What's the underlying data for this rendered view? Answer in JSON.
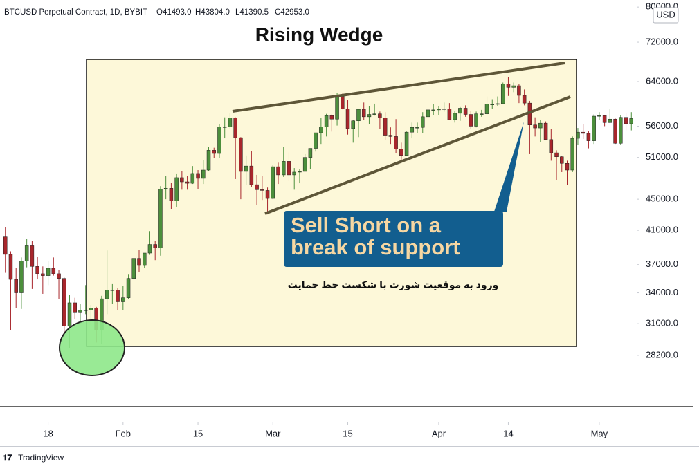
{
  "chart_data": {
    "type": "candlestick",
    "header": [
      "BTCUSD Perpetual Contract, 1D, BYBIT",
      "O41493.0",
      "H43804.0",
      "L41390.5",
      "C42953.0"
    ],
    "title": "Rising Wedge",
    "callout": [
      "Sell Short on a",
      "break of support"
    ],
    "note": "ورود به موقعیت شورت با شکست خط حمایت",
    "currency": "USD",
    "up_color": "#4c8f3c",
    "down_color": "#a8262c",
    "log_scale": true,
    "grid": false,
    "ylim": [
      25900,
      81700
    ],
    "yticks": [
      {
        "value": 80000,
        "label": "80000.0"
      },
      {
        "value": 72000,
        "label": "72000.0"
      },
      {
        "value": 64000,
        "label": "64000.0"
      },
      {
        "value": 56000,
        "label": "56000.0"
      },
      {
        "value": 51000,
        "label": "51000.0"
      },
      {
        "value": 45000,
        "label": "45000.0"
      },
      {
        "value": 41000,
        "label": "41000.0"
      },
      {
        "value": 37000,
        "label": "37000.0"
      },
      {
        "value": 34000,
        "label": "34000.0"
      },
      {
        "value": 31000,
        "label": "31000.0"
      },
      {
        "value": 28200,
        "label": "28200.0"
      }
    ],
    "xlim": [
      -1,
      118
    ],
    "xticks": [
      {
        "value": 8,
        "label": "18"
      },
      {
        "value": 22,
        "label": "Feb"
      },
      {
        "value": 36,
        "label": "15"
      },
      {
        "value": 50,
        "label": "Mar"
      },
      {
        "value": 64,
        "label": "15"
      },
      {
        "value": 81,
        "label": "Apr"
      },
      {
        "value": 94,
        "label": "14"
      },
      {
        "value": 111,
        "label": "May"
      }
    ],
    "candles": [
      [
        40200,
        41400,
        36100,
        38150
      ],
      [
        38150,
        38500,
        30400,
        35400
      ],
      [
        35400,
        36600,
        32500,
        34000
      ],
      [
        34000,
        37800,
        32400,
        37400
      ],
      [
        37400,
        40000,
        36700,
        39150
      ],
      [
        39150,
        39700,
        34400,
        36800
      ],
      [
        36800,
        37900,
        35400,
        36000
      ],
      [
        36000,
        36800,
        33900,
        35800
      ],
      [
        35800,
        37400,
        34800,
        36600
      ],
      [
        36600,
        37800,
        35800,
        36000
      ],
      [
        36000,
        36400,
        33400,
        35500
      ],
      [
        35500,
        35600,
        30100,
        30800
      ],
      [
        30800,
        33800,
        28800,
        33000
      ],
      [
        33000,
        33500,
        31400,
        32100
      ],
      [
        32100,
        32900,
        31000,
        32300
      ],
      [
        32300,
        34800,
        31900,
        32300
      ],
      [
        32300,
        32800,
        30900,
        32500
      ],
      [
        32500,
        32600,
        29300,
        30400
      ],
      [
        30400,
        33700,
        29200,
        33400
      ],
      [
        33400,
        38600,
        31900,
        34300
      ],
      [
        34300,
        34900,
        32900,
        34300
      ],
      [
        34300,
        34500,
        32300,
        33100
      ],
      [
        33100,
        34700,
        32300,
        33500
      ],
      [
        33500,
        35900,
        33400,
        35500
      ],
      [
        35500,
        37700,
        35400,
        37700
      ],
      [
        37700,
        38700,
        36200,
        36900
      ],
      [
        36900,
        38300,
        36600,
        38300
      ],
      [
        38300,
        40900,
        38100,
        39300
      ],
      [
        39300,
        39700,
        37500,
        38900
      ],
      [
        38900,
        46800,
        38000,
        46400
      ],
      [
        46400,
        48200,
        45000,
        46500
      ],
      [
        46500,
        47300,
        43700,
        44800
      ],
      [
        44800,
        48600,
        44000,
        48000
      ],
      [
        48000,
        48900,
        46300,
        47400
      ],
      [
        47400,
        48200,
        46300,
        47200
      ],
      [
        47200,
        49700,
        47100,
        48600
      ],
      [
        48600,
        49100,
        46400,
        47900
      ],
      [
        47900,
        50600,
        47100,
        49100
      ],
      [
        49100,
        52600,
        48900,
        52100
      ],
      [
        52100,
        52500,
        50900,
        51600
      ],
      [
        51600,
        56300,
        50900,
        55900
      ],
      [
        55900,
        57500,
        54000,
        55900
      ],
      [
        55900,
        58300,
        55500,
        57400
      ],
      [
        57400,
        57500,
        47800,
        54100
      ],
      [
        54100,
        54200,
        45000,
        48900
      ],
      [
        48900,
        51300,
        47000,
        49700
      ],
      [
        49700,
        52000,
        46700,
        47000
      ],
      [
        47000,
        48400,
        44200,
        46300
      ],
      [
        46300,
        48200,
        44900,
        46200
      ],
      [
        46200,
        46600,
        43000,
        45100
      ],
      [
        45100,
        49800,
        45000,
        49600
      ],
      [
        49600,
        50200,
        47100,
        48400
      ],
      [
        48400,
        52600,
        48100,
        50400
      ],
      [
        50400,
        51800,
        47500,
        48400
      ],
      [
        48400,
        49400,
        46300,
        48800
      ],
      [
        48800,
        49200,
        47200,
        48900
      ],
      [
        48900,
        51500,
        48900,
        51000
      ],
      [
        51000,
        52400,
        49300,
        52400
      ],
      [
        52400,
        54900,
        51900,
        54900
      ],
      [
        54900,
        57400,
        53100,
        55900
      ],
      [
        55900,
        58100,
        54300,
        57800
      ],
      [
        57800,
        58000,
        55100,
        57200
      ],
      [
        57200,
        61800,
        56100,
        61200
      ],
      [
        61200,
        61700,
        58900,
        59000
      ],
      [
        59000,
        60600,
        54600,
        55600
      ],
      [
        55600,
        57000,
        53300,
        56900
      ],
      [
        56900,
        59000,
        54200,
        58900
      ],
      [
        58900,
        60100,
        57100,
        57600
      ],
      [
        57600,
        59500,
        56300,
        58000
      ],
      [
        58000,
        59900,
        57800,
        58100
      ],
      [
        58100,
        58500,
        55500,
        57400
      ],
      [
        57400,
        58400,
        53700,
        54500
      ],
      [
        54500,
        55800,
        53100,
        54300
      ],
      [
        54300,
        57200,
        51700,
        52300
      ],
      [
        52300,
        53300,
        50400,
        51300
      ],
      [
        51300,
        55100,
        51300,
        55000
      ],
      [
        55000,
        56600,
        54000,
        55800
      ],
      [
        55800,
        56600,
        54900,
        55800
      ],
      [
        55800,
        58400,
        54900,
        57600
      ],
      [
        57600,
        59300,
        57000,
        58800
      ],
      [
        58800,
        59800,
        57900,
        58800
      ],
      [
        58800,
        59500,
        57900,
        59000
      ],
      [
        59000,
        60100,
        58500,
        59000
      ],
      [
        59000,
        60000,
        57000,
        57100
      ],
      [
        57100,
        58600,
        56600,
        58200
      ],
      [
        58200,
        59300,
        56900,
        59100
      ],
      [
        59100,
        59600,
        57600,
        58000
      ],
      [
        58000,
        58600,
        55600,
        56000
      ],
      [
        56000,
        58500,
        55800,
        58100
      ],
      [
        58100,
        58800,
        57600,
        58100
      ],
      [
        58100,
        61200,
        57900,
        59800
      ],
      [
        59800,
        60700,
        59000,
        59800
      ],
      [
        59800,
        61200,
        59500,
        59900
      ],
      [
        59900,
        63800,
        59800,
        63500
      ],
      [
        63500,
        64800,
        61300,
        62900
      ],
      [
        62900,
        63800,
        62000,
        63200
      ],
      [
        63200,
        63600,
        60000,
        61400
      ],
      [
        61400,
        62500,
        59600,
        60000
      ],
      [
        60000,
        60400,
        51500,
        56200
      ],
      [
        56200,
        57500,
        54300,
        55700
      ],
      [
        55700,
        57000,
        53400,
        56500
      ],
      [
        56500,
        56800,
        53700,
        53800
      ],
      [
        53800,
        55500,
        50500,
        51700
      ],
      [
        51700,
        52100,
        47600,
        51100
      ],
      [
        51100,
        51200,
        48800,
        50100
      ],
      [
        50100,
        50500,
        47000,
        49100
      ],
      [
        49100,
        54300,
        48800,
        54000
      ],
      [
        54000,
        55700,
        53000,
        55000
      ],
      [
        55000,
        56400,
        53900,
        54800
      ],
      [
        54800,
        55200,
        52400,
        53600
      ],
      [
        53600,
        58000,
        53100,
        57700
      ],
      [
        57700,
        58400,
        57000,
        57800
      ],
      [
        57800,
        57900,
        56000,
        56600
      ],
      [
        56600,
        58900,
        56500,
        57200
      ],
      [
        57200,
        57300,
        53100,
        53200
      ],
      [
        53200,
        57900,
        52900,
        57500
      ],
      [
        57500,
        58300,
        55300,
        56400
      ],
      [
        56400,
        58400,
        55300,
        57300
      ]
    ]
  },
  "brand": "TradingView"
}
